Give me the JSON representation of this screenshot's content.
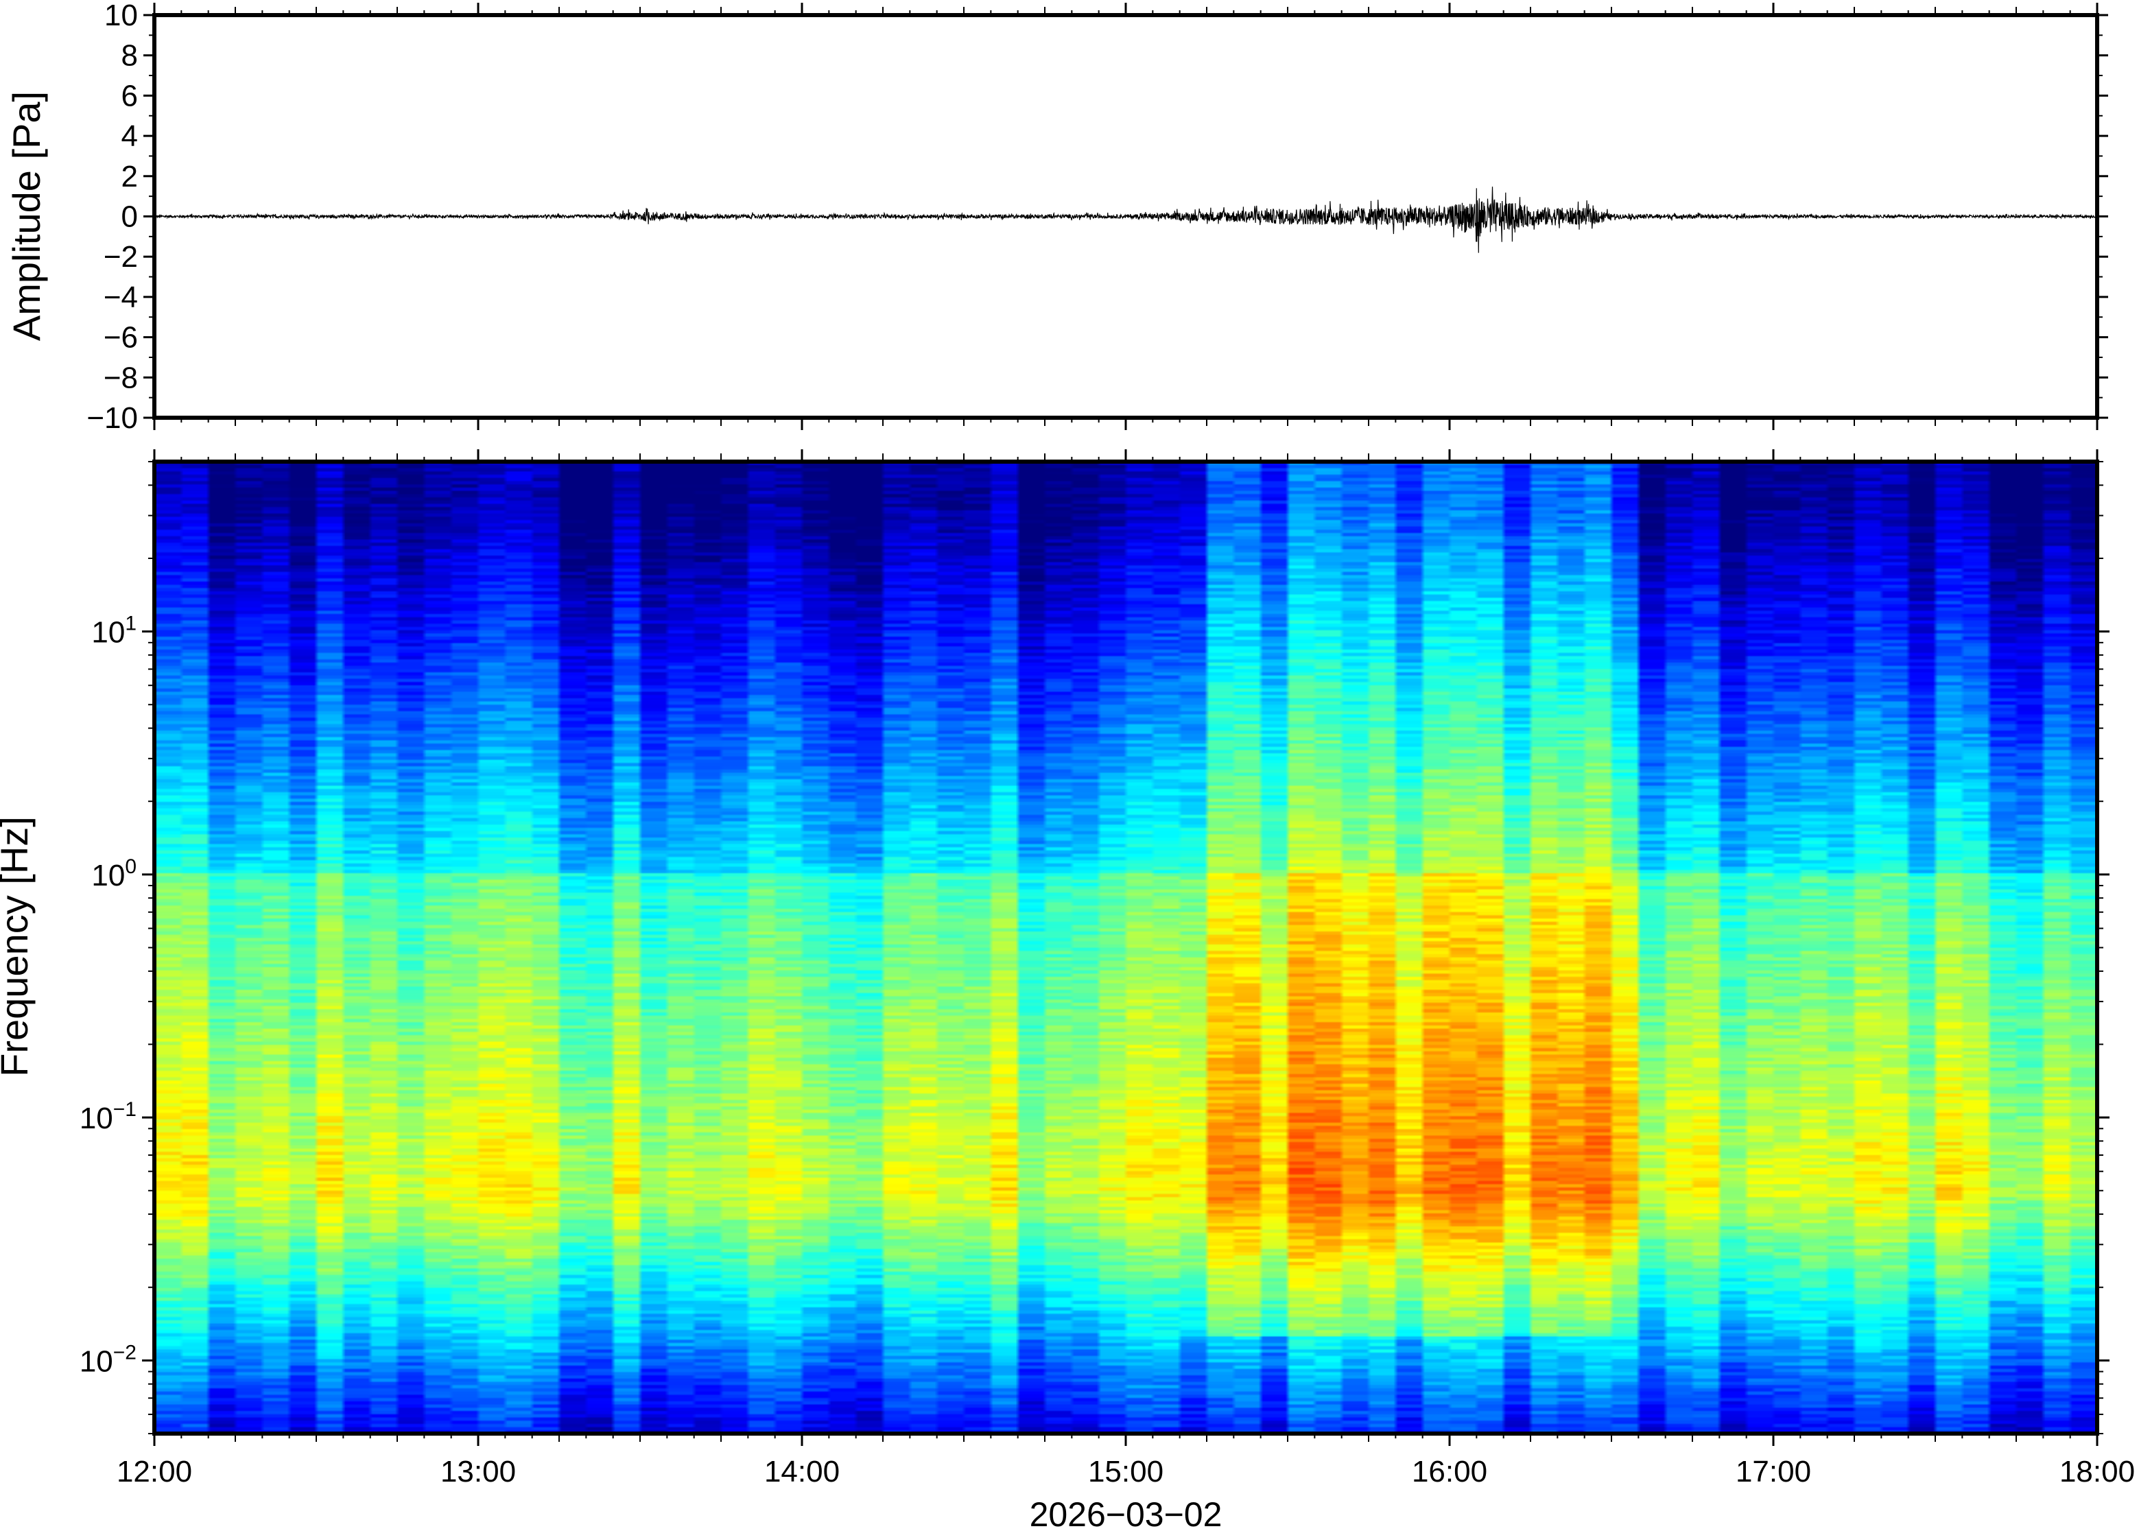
{
  "chart_data": [
    {
      "type": "line",
      "panel": "waveform",
      "ylabel": "Amplitude [Pa]",
      "ylim": [
        -10,
        10
      ],
      "y_ticks": [
        "10",
        "8",
        "6",
        "4",
        "2",
        "0",
        "−2",
        "−4",
        "−6",
        "−8",
        "−10"
      ],
      "y_tick_values": [
        10,
        8,
        6,
        4,
        2,
        0,
        -2,
        -4,
        -6,
        -8,
        -10
      ],
      "xlim": [
        "12:00",
        "18:00"
      ],
      "envelope": {
        "time_hours": [
          12.0,
          12.5,
          13.0,
          13.4,
          13.5,
          13.7,
          14.0,
          14.5,
          15.0,
          15.25,
          15.5,
          15.75,
          16.0,
          16.08,
          16.25,
          16.45,
          16.5,
          17.0,
          17.5,
          18.0
        ],
        "half_amplitude_pa": [
          0.08,
          0.1,
          0.08,
          0.1,
          0.3,
          0.15,
          0.1,
          0.12,
          0.12,
          0.3,
          0.5,
          0.55,
          0.6,
          1.3,
          0.6,
          0.5,
          0.15,
          0.1,
          0.08,
          0.08
        ]
      },
      "peak": {
        "time": "16:05",
        "amplitude_pa": 1.4
      }
    },
    {
      "type": "heatmap",
      "panel": "spectrogram",
      "ylabel": "Frequency [Hz]",
      "y_scale": "log",
      "ylim_hz": [
        0.005,
        50
      ],
      "y_ticks": [
        {
          "base": "10",
          "exp": "1",
          "value": 10
        },
        {
          "base": "10",
          "exp": "0",
          "value": 1
        },
        {
          "base": "10",
          "exp": "−1",
          "value": 0.1
        },
        {
          "base": "10",
          "exp": "−2",
          "value": 0.01
        }
      ],
      "x_ticks": [
        "12:00",
        "13:00",
        "14:00",
        "15:00",
        "16:00",
        "17:00",
        "18:00"
      ],
      "x_tick_hours": [
        12,
        13,
        14,
        15,
        16,
        17,
        18
      ],
      "xlabel": "2026−03−02",
      "colormap": "jet",
      "colors": [
        "#00007f",
        "#0000ff",
        "#007fff",
        "#00ffff",
        "#7fff7f",
        "#ffff00",
        "#ff7f00",
        "#ff0000"
      ],
      "active_interval": [
        "15:15",
        "16:30"
      ]
    }
  ]
}
